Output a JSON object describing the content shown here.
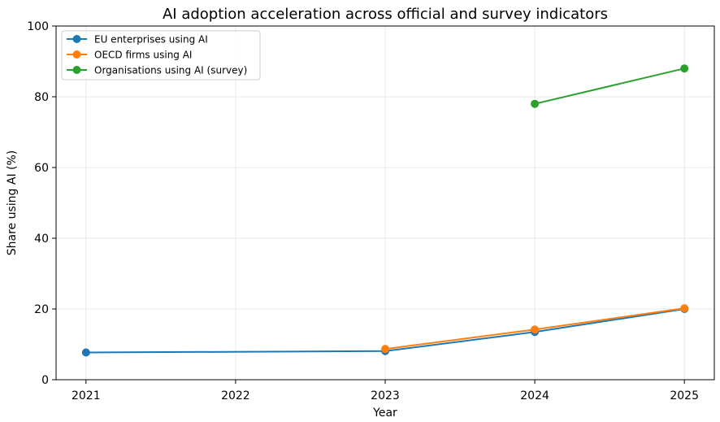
{
  "chart_data": {
    "type": "line",
    "title": "AI adoption acceleration across official and survey indicators",
    "xlabel": "Year",
    "ylabel": "Share using AI (%)",
    "xlim": [
      2020.8,
      2025.2
    ],
    "ylim": [
      0,
      100
    ],
    "xticks": [
      2021,
      2022,
      2023,
      2024,
      2025
    ],
    "yticks": [
      0,
      20,
      40,
      60,
      80,
      100
    ],
    "grid": true,
    "legend_position": "upper-left",
    "series": [
      {
        "name": "EU enterprises using AI",
        "color": "#1f77b4",
        "points": [
          [
            2021,
            7.7
          ],
          [
            2023,
            8.1
          ],
          [
            2024,
            13.5
          ],
          [
            2025,
            20.0
          ]
        ]
      },
      {
        "name": "OECD firms using AI",
        "color": "#ff7f0e",
        "points": [
          [
            2023,
            8.7
          ],
          [
            2024,
            14.2
          ],
          [
            2025,
            20.2
          ]
        ]
      },
      {
        "name": "Organisations using AI (survey)",
        "color": "#2ca02c",
        "points": [
          [
            2024,
            78
          ],
          [
            2025,
            88
          ]
        ]
      }
    ]
  }
}
